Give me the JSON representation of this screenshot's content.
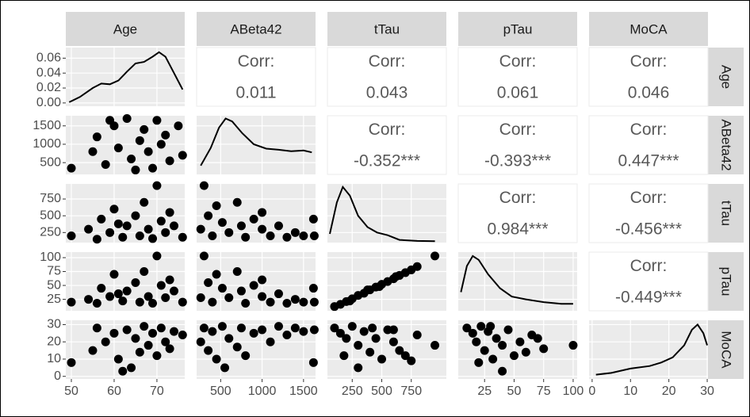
{
  "chart_data": {
    "type": "pairs",
    "variables": [
      "Age",
      "ABeta42",
      "tTau",
      "pTau",
      "MoCA"
    ],
    "corr_label": "Corr:",
    "columns": [
      {
        "xlim": [
          48.7,
          76.5
        ],
        "xticks": [
          50,
          60,
          70
        ]
      },
      {
        "xlim": [
          210,
          1645
        ],
        "xticks": [
          500,
          1000,
          1500
        ]
      },
      {
        "xlim": [
          40,
          1047
        ],
        "xticks": [
          250,
          500,
          750
        ]
      },
      {
        "xlim": [
          2.7,
          103.4
        ],
        "xticks": [
          25,
          50,
          75,
          100
        ]
      },
      {
        "xlim": [
          -0.8,
          30.2
        ],
        "xticks": [
          0,
          10,
          20,
          30
        ]
      }
    ],
    "rows": [
      {
        "ylim": [
          -0.0044,
          0.0742
        ],
        "yticks": [
          {
            "value": 0,
            "label": "0.00"
          },
          0.02,
          0.04,
          0.06
        ]
      },
      {
        "ylim": [
          180,
          1775
        ],
        "yticks": [
          500,
          1000,
          1500
        ]
      },
      {
        "ylim": [
          100,
          975
        ],
        "yticks": [
          250,
          500,
          750
        ]
      },
      {
        "ylim": [
          4.4,
          110
        ],
        "yticks": [
          25,
          50,
          75,
          100
        ]
      },
      {
        "ylim": [
          -1.5,
          32.5
        ],
        "yticks": [
          0,
          10,
          20,
          30
        ]
      }
    ],
    "densities": [
      {
        "x": [
          49.5,
          52,
          55,
          57,
          59,
          61,
          63,
          65,
          67,
          69,
          70.5,
          72,
          74,
          76
        ],
        "y": [
          0.001,
          0.008,
          0.02,
          0.026,
          0.025,
          0.03,
          0.042,
          0.053,
          0.055,
          0.062,
          0.068,
          0.062,
          0.04,
          0.018
        ]
      },
      {
        "x": [
          260,
          380,
          480,
          560,
          640,
          760,
          900,
          1050,
          1200,
          1350,
          1500,
          1600
        ],
        "y": [
          420,
          900,
          1450,
          1700,
          1620,
          1300,
          1000,
          880,
          850,
          810,
          830,
          780
        ]
      },
      {
        "x": [
          60,
          120,
          170,
          230,
          300,
          380,
          460,
          550,
          650,
          800,
          950
        ],
        "y": [
          230,
          700,
          930,
          800,
          500,
          330,
          250,
          210,
          140,
          125,
          120
        ]
      },
      {
        "x": [
          5,
          10,
          15,
          20,
          28,
          38,
          48,
          60,
          75,
          90,
          100
        ],
        "y": [
          38,
          85,
          103,
          96,
          70,
          45,
          30,
          25,
          20,
          17,
          17
        ]
      },
      {
        "x": [
          1,
          5,
          10,
          15,
          18,
          21,
          24,
          26,
          27.5,
          29,
          30
        ],
        "y": [
          1,
          2,
          4.5,
          6,
          8,
          11,
          18,
          27,
          30,
          25,
          18
        ]
      }
    ],
    "upper": [
      [
        "0.011",
        "0.043",
        "0.061",
        "0.046"
      ],
      [
        "-0.352***",
        "-0.393***",
        "0.447***"
      ],
      [
        "0.984***",
        "-0.456***"
      ],
      [
        "-0.449***"
      ]
    ],
    "lower": [
      [
        {
          "x": [
            50,
            55,
            56,
            58,
            60,
            61,
            63,
            64,
            66,
            67,
            68,
            69,
            70,
            71,
            72,
            73,
            75,
            76,
            65,
            59
          ],
          "y": [
            350,
            800,
            1200,
            450,
            1500,
            900,
            1700,
            600,
            1100,
            1400,
            800,
            350,
            1650,
            1000,
            1250,
            550,
            1500,
            700,
            300,
            1650
          ]
        }
      ],
      [
        {
          "x": [
            50,
            54,
            56,
            57,
            59,
            60,
            62,
            63,
            65,
            66,
            67,
            68,
            69,
            70,
            71,
            72,
            74,
            76,
            61,
            73
          ],
          "y": [
            200,
            300,
            150,
            450,
            250,
            600,
            180,
            350,
            500,
            200,
            700,
            300,
            160,
            950,
            420,
            250,
            350,
            180,
            380,
            550
          ]
        },
        {
          "x": [
            260,
            300,
            350,
            400,
            450,
            520,
            600,
            700,
            750,
            800,
            900,
            1000,
            1100,
            1200,
            1300,
            1400,
            1500,
            1620,
            1630,
            1000
          ],
          "y": [
            300,
            950,
            500,
            200,
            650,
            400,
            250,
            700,
            350,
            180,
            450,
            300,
            200,
            350,
            180,
            250,
            200,
            450,
            200,
            550
          ]
        }
      ],
      [
        {
          "x": [
            50,
            54,
            56,
            57,
            59,
            60,
            62,
            63,
            65,
            66,
            67,
            68,
            69,
            70,
            71,
            72,
            74,
            76,
            61,
            73
          ],
          "y": [
            20,
            25,
            18,
            45,
            30,
            70,
            22,
            40,
            55,
            20,
            75,
            30,
            18,
            103,
            50,
            28,
            40,
            20,
            35,
            60
          ]
        },
        {
          "x": [
            260,
            300,
            350,
            400,
            450,
            520,
            600,
            700,
            750,
            800,
            900,
            1000,
            1100,
            1200,
            1300,
            1400,
            1500,
            1620,
            1630,
            1000
          ],
          "y": [
            28,
            103,
            55,
            20,
            70,
            45,
            28,
            75,
            40,
            18,
            50,
            30,
            20,
            35,
            18,
            25,
            20,
            45,
            20,
            60
          ]
        },
        {
          "x": [
            100,
            150,
            200,
            250,
            300,
            350,
            400,
            450,
            500,
            550,
            600,
            650,
            700,
            750,
            800,
            950,
            230,
            380,
            480,
            620
          ],
          "y": [
            12,
            16,
            21,
            26,
            32,
            36,
            42,
            47,
            52,
            57,
            62,
            68,
            73,
            78,
            84,
            103,
            22,
            42,
            48,
            66
          ]
        }
      ],
      [
        {
          "x": [
            50,
            55,
            56,
            58,
            60,
            61,
            62,
            63,
            65,
            66,
            67,
            68,
            69,
            70,
            71,
            72,
            74,
            76,
            64,
            73
          ],
          "y": [
            8,
            15,
            28,
            20,
            25,
            10,
            3,
            27,
            22,
            14,
            29,
            18,
            25,
            12,
            28,
            20,
            26,
            24,
            5,
            16
          ]
        },
        {
          "x": [
            260,
            300,
            350,
            400,
            450,
            520,
            600,
            700,
            750,
            800,
            900,
            1000,
            1100,
            1200,
            1300,
            1400,
            1500,
            1620,
            1630,
            550
          ],
          "y": [
            20,
            28,
            15,
            26,
            10,
            29,
            22,
            17,
            28,
            12,
            25,
            27,
            20,
            29,
            24,
            28,
            26,
            8,
            27,
            5
          ]
        },
        {
          "x": [
            100,
            150,
            200,
            250,
            300,
            350,
            400,
            450,
            500,
            550,
            600,
            650,
            700,
            750,
            800,
            950,
            180,
            420,
            300,
            600
          ],
          "y": [
            28,
            25,
            22,
            29,
            18,
            26,
            14,
            22,
            10,
            27,
            20,
            15,
            12,
            9,
            24,
            18,
            12,
            28,
            5,
            27
          ]
        },
        {
          "x": [
            10,
            15,
            18,
            22,
            25,
            28,
            32,
            35,
            40,
            45,
            50,
            55,
            60,
            65,
            70,
            75,
            100,
            20,
            30,
            40
          ],
          "y": [
            28,
            25,
            20,
            29,
            15,
            26,
            10,
            22,
            18,
            27,
            12,
            20,
            14,
            24,
            22,
            16,
            18,
            8,
            29,
            3
          ]
        }
      ]
    ]
  }
}
